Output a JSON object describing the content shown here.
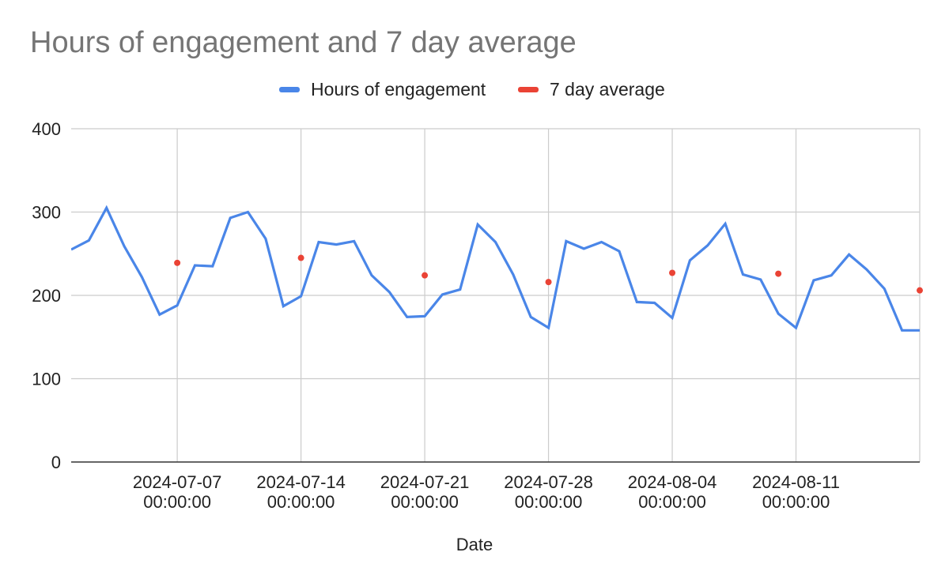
{
  "chart_data": {
    "type": "line",
    "title": "Hours of engagement and 7 day average",
    "xlabel": "Date",
    "ylabel": "",
    "ylim": [
      0,
      400
    ],
    "y_ticks": [
      0,
      100,
      200,
      300,
      400
    ],
    "x_range": [
      "2024-07-01",
      "2024-08-18"
    ],
    "x_ticks": [
      {
        "date": "2024-07-07",
        "line1": "2024-07-07",
        "line2": "00:00:00"
      },
      {
        "date": "2024-07-14",
        "line1": "2024-07-14",
        "line2": "00:00:00"
      },
      {
        "date": "2024-07-21",
        "line1": "2024-07-21",
        "line2": "00:00:00"
      },
      {
        "date": "2024-07-28",
        "line1": "2024-07-28",
        "line2": "00:00:00"
      },
      {
        "date": "2024-08-04",
        "line1": "2024-08-04",
        "line2": "00:00:00"
      },
      {
        "date": "2024-08-11",
        "line1": "2024-08-11",
        "line2": "00:00:00"
      }
    ],
    "legend_position": "top-center",
    "series": [
      {
        "name": "Hours of engagement",
        "color": "#4a86e8",
        "style": "line",
        "x": [
          "2024-07-01",
          "2024-07-02",
          "2024-07-03",
          "2024-07-04",
          "2024-07-05",
          "2024-07-06",
          "2024-07-07",
          "2024-07-08",
          "2024-07-09",
          "2024-07-10",
          "2024-07-11",
          "2024-07-12",
          "2024-07-13",
          "2024-07-14",
          "2024-07-15",
          "2024-07-16",
          "2024-07-17",
          "2024-07-18",
          "2024-07-19",
          "2024-07-20",
          "2024-07-21",
          "2024-07-22",
          "2024-07-23",
          "2024-07-24",
          "2024-07-25",
          "2024-07-26",
          "2024-07-27",
          "2024-07-28",
          "2024-07-29",
          "2024-07-30",
          "2024-07-31",
          "2024-08-01",
          "2024-08-02",
          "2024-08-03",
          "2024-08-04",
          "2024-08-05",
          "2024-08-06",
          "2024-08-07",
          "2024-08-08",
          "2024-08-09",
          "2024-08-10",
          "2024-08-11",
          "2024-08-12",
          "2024-08-13",
          "2024-08-14",
          "2024-08-15",
          "2024-08-16",
          "2024-08-17",
          "2024-08-18"
        ],
        "values": [
          255,
          266,
          305,
          259,
          222,
          177,
          188,
          236,
          235,
          293,
          300,
          268,
          187,
          199,
          264,
          261,
          265,
          224,
          204,
          174,
          175,
          201,
          207,
          285,
          264,
          225,
          174,
          161,
          265,
          256,
          264,
          253,
          192,
          191,
          173,
          242,
          260,
          286,
          225,
          219,
          178,
          161,
          218,
          224,
          249,
          231,
          208,
          158,
          158
        ]
      },
      {
        "name": "7 day average",
        "color": "#ea4335",
        "style": "points",
        "x": [
          "2024-07-07",
          "2024-07-14",
          "2024-07-21",
          "2024-07-28",
          "2024-08-04",
          "2024-08-10",
          "2024-08-18"
        ],
        "values": [
          239,
          245,
          224,
          216,
          227,
          226,
          206
        ]
      }
    ]
  }
}
